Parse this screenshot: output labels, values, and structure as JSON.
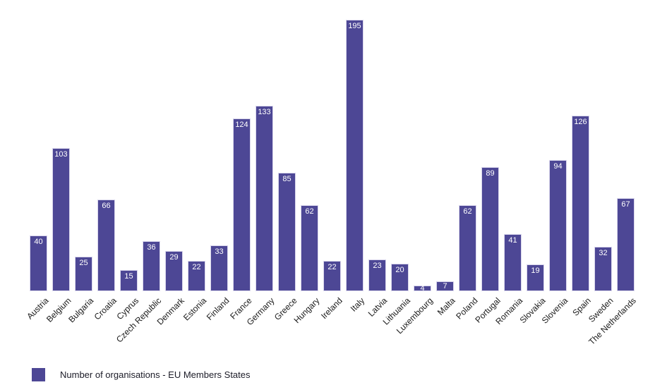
{
  "chart_data": {
    "type": "bar",
    "categories": [
      "Austria",
      "Belgium",
      "Bulgaria",
      "Croatia",
      "Cyprus",
      "Czech Republic",
      "Denmark",
      "Estonia",
      "Finland",
      "France",
      "Germany",
      "Greece",
      "Hungary",
      "Ireland",
      "Italy",
      "Latvia",
      "Lithuania",
      "Luxembourg",
      "Malta",
      "Poland",
      "Portugal",
      "Romania",
      "Slovakia",
      "Slovenia",
      "Spain",
      "Sweden",
      "The Netherlands"
    ],
    "values": [
      40,
      103,
      25,
      66,
      15,
      36,
      29,
      22,
      33,
      124,
      133,
      85,
      62,
      22,
      195,
      23,
      20,
      4,
      7,
      62,
      89,
      41,
      19,
      94,
      126,
      32,
      67
    ],
    "title": "",
    "xlabel": "",
    "ylabel": "",
    "ylim": [
      0,
      195
    ],
    "grid": false,
    "value_labels": "inside-top, white",
    "legend_position": "bottom-left",
    "legend_label": "Number of organisations - EU Members States",
    "series": [
      {
        "name": "Number of organisations - EU Members States",
        "color": "#4d4795",
        "values": [
          40,
          103,
          25,
          66,
          15,
          36,
          29,
          22,
          33,
          124,
          133,
          85,
          62,
          22,
          195,
          23,
          20,
          4,
          7,
          62,
          89,
          41,
          19,
          94,
          126,
          32,
          67
        ]
      }
    ]
  },
  "colors": {
    "bar": "#4d4795",
    "bar_border": "#d9d6ec",
    "value_label": "#ffffff",
    "axis_label": "#1a1a1a",
    "legend_text": "#1c1c28",
    "background": "#ffffff"
  }
}
